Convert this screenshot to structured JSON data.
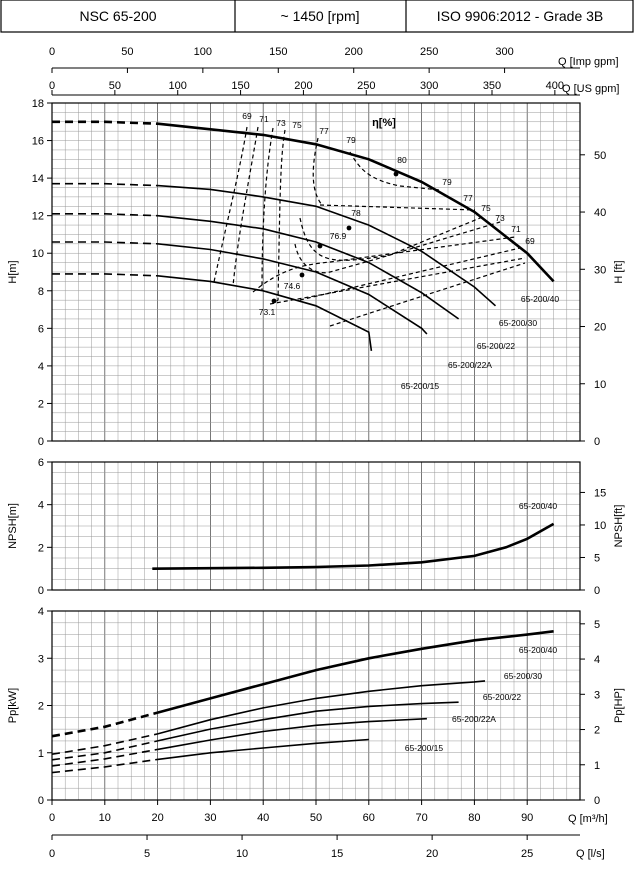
{
  "header": {
    "model": "NSC 65-200",
    "speed": "~ 1450 [rpm]",
    "standard": "ISO 9906:2012 - Grade 3B"
  },
  "axes": {
    "top_imp": {
      "label": "Q [Imp gpm]",
      "ticks": [
        "0",
        "50",
        "100",
        "150",
        "200",
        "250",
        "300"
      ],
      "max": 350
    },
    "top_us": {
      "label": "Q [US gpm]",
      "ticks": [
        "0",
        "50",
        "100",
        "150",
        "200",
        "250",
        "300",
        "350",
        "400"
      ],
      "max": 420
    },
    "bottom_m3h": {
      "label": "Q [m³/h]",
      "ticks": [
        "0",
        "10",
        "20",
        "30",
        "40",
        "50",
        "60",
        "70",
        "80",
        "90"
      ],
      "max": 100
    },
    "bottom_ls": {
      "label": "Q [l/s]",
      "ticks": [
        "0",
        "5",
        "10",
        "15",
        "20",
        "25"
      ],
      "max": 27.78
    }
  },
  "chart_data": [
    {
      "type": "line",
      "title": "",
      "xlabel": "Q [m³/h]",
      "ylabel": "H[m]",
      "ylabel_right": "H [ft]",
      "xlim": [
        0,
        100
      ],
      "ylim": [
        0,
        18
      ],
      "yticks": [
        "0",
        "2",
        "4",
        "6",
        "8",
        "10",
        "12",
        "14",
        "16",
        "18"
      ],
      "yticks_right": [
        "0",
        "10",
        "20",
        "30",
        "40",
        "50"
      ],
      "grid": true,
      "efficiency_label": "η[%]",
      "series": [
        {
          "name": "65-200/40",
          "points": [
            [
              0,
              17
            ],
            [
              10,
              17
            ],
            [
              20,
              16.9
            ],
            [
              30,
              16.6
            ],
            [
              40,
              16.3
            ],
            [
              50,
              15.8
            ],
            [
              60,
              15
            ],
            [
              70,
              13.8
            ],
            [
              80,
              12.2
            ],
            [
              90,
              10
            ],
            [
              95,
              8.5
            ]
          ]
        },
        {
          "name": "65-200/30",
          "points": [
            [
              0,
              13.7
            ],
            [
              10,
              13.7
            ],
            [
              20,
              13.6
            ],
            [
              30,
              13.4
            ],
            [
              40,
              13.0
            ],
            [
              50,
              12.5
            ],
            [
              60,
              11.5
            ],
            [
              70,
              10.1
            ],
            [
              80,
              8.2
            ],
            [
              84,
              7.2
            ]
          ]
        },
        {
          "name": "65-200/22",
          "points": [
            [
              0,
              12.1
            ],
            [
              10,
              12.1
            ],
            [
              20,
              12.0
            ],
            [
              30,
              11.7
            ],
            [
              40,
              11.3
            ],
            [
              50,
              10.6
            ],
            [
              60,
              9.5
            ],
            [
              70,
              7.9
            ],
            [
              77,
              6.5
            ]
          ]
        },
        {
          "name": "65-200/22A",
          "points": [
            [
              0,
              10.6
            ],
            [
              10,
              10.6
            ],
            [
              20,
              10.5
            ],
            [
              30,
              10.2
            ],
            [
              40,
              9.7
            ],
            [
              50,
              9.0
            ],
            [
              60,
              7.8
            ],
            [
              70,
              6.0
            ],
            [
              71,
              5.7
            ]
          ]
        },
        {
          "name": "65-200/15",
          "points": [
            [
              0,
              8.9
            ],
            [
              10,
              8.9
            ],
            [
              20,
              8.8
            ],
            [
              30,
              8.5
            ],
            [
              40,
              8.0
            ],
            [
              50,
              7.2
            ],
            [
              60,
              5.8
            ],
            [
              60.5,
              4.8
            ]
          ]
        }
      ],
      "efficiency_labels": [
        "69",
        "71",
        "73",
        "75",
        "77",
        "79",
        "80",
        "79",
        "77",
        "75",
        "73",
        "71",
        "69",
        "78",
        "76.9",
        "74.6",
        "73.1"
      ]
    },
    {
      "type": "line",
      "title": "",
      "xlabel": "Q [m³/h]",
      "ylabel": "NPSH[m]",
      "ylabel_right": "NPSH[ft]",
      "xlim": [
        0,
        100
      ],
      "ylim": [
        0,
        6
      ],
      "yticks": [
        "0",
        "2",
        "4",
        "6"
      ],
      "yticks_right": [
        "0",
        "5",
        "10",
        "15"
      ],
      "grid": true,
      "series": [
        {
          "name": "65-200/40",
          "points": [
            [
              19,
              1.0
            ],
            [
              30,
              1.02
            ],
            [
              40,
              1.04
            ],
            [
              50,
              1.08
            ],
            [
              60,
              1.15
            ],
            [
              70,
              1.3
            ],
            [
              80,
              1.6
            ],
            [
              86,
              2.0
            ],
            [
              90,
              2.4
            ],
            [
              95,
              3.1
            ]
          ]
        }
      ]
    },
    {
      "type": "line",
      "title": "",
      "xlabel": "Q [m³/h]",
      "ylabel": "Pp[kW]",
      "ylabel_right": "Pp[HP]",
      "xlim": [
        0,
        100
      ],
      "ylim": [
        0,
        4
      ],
      "yticks": [
        "0",
        "1",
        "2",
        "3",
        "4"
      ],
      "yticks_right": [
        "0",
        "1",
        "2",
        "3",
        "4",
        "5"
      ],
      "grid": true,
      "series": [
        {
          "name": "65-200/40",
          "points": [
            [
              0,
              1.35
            ],
            [
              10,
              1.55
            ],
            [
              20,
              1.85
            ],
            [
              30,
              2.15
            ],
            [
              40,
              2.45
            ],
            [
              50,
              2.75
            ],
            [
              60,
              3.0
            ],
            [
              70,
              3.2
            ],
            [
              80,
              3.38
            ],
            [
              90,
              3.5
            ],
            [
              95,
              3.57
            ]
          ]
        },
        {
          "name": "65-200/30",
          "points": [
            [
              0,
              0.97
            ],
            [
              10,
              1.15
            ],
            [
              20,
              1.4
            ],
            [
              30,
              1.7
            ],
            [
              40,
              1.95
            ],
            [
              50,
              2.15
            ],
            [
              60,
              2.3
            ],
            [
              70,
              2.42
            ],
            [
              80,
              2.5
            ],
            [
              82,
              2.52
            ]
          ]
        },
        {
          "name": "65-200/22",
          "points": [
            [
              0,
              0.85
            ],
            [
              10,
              1.0
            ],
            [
              20,
              1.25
            ],
            [
              30,
              1.5
            ],
            [
              40,
              1.7
            ],
            [
              50,
              1.88
            ],
            [
              60,
              1.98
            ],
            [
              70,
              2.04
            ],
            [
              77,
              2.07
            ]
          ]
        },
        {
          "name": "65-200/22A",
          "points": [
            [
              0,
              0.72
            ],
            [
              10,
              0.87
            ],
            [
              20,
              1.07
            ],
            [
              30,
              1.27
            ],
            [
              40,
              1.45
            ],
            [
              50,
              1.58
            ],
            [
              60,
              1.66
            ],
            [
              71,
              1.72
            ]
          ]
        },
        {
          "name": "65-200/15",
          "points": [
            [
              0,
              0.58
            ],
            [
              10,
              0.7
            ],
            [
              20,
              0.86
            ],
            [
              30,
              1.0
            ],
            [
              40,
              1.1
            ],
            [
              50,
              1.2
            ],
            [
              60,
              1.28
            ]
          ]
        }
      ]
    }
  ]
}
